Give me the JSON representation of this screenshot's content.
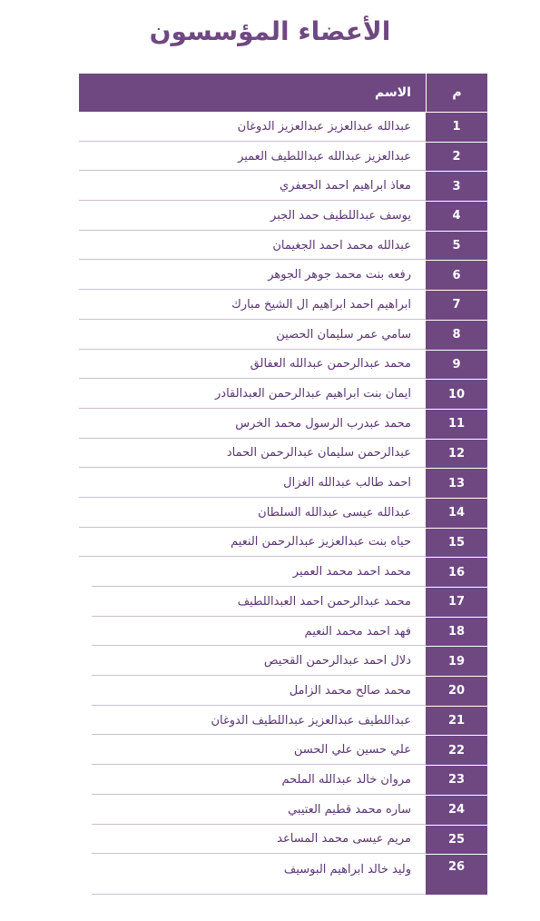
{
  "title": "الأعضاء المؤسسون",
  "table": {
    "header": {
      "num": "م",
      "name": "الاسم"
    },
    "rows": [
      {
        "num": "1",
        "name": "عبدالله عبدالعزيز عبدالعزيز الدوغان"
      },
      {
        "num": "2",
        "name": "عبدالعزيز عبدالله عبداللطيف العمير"
      },
      {
        "num": "3",
        "name": "معاذ ابراهيم احمد الجعفري"
      },
      {
        "num": "4",
        "name": "يوسف عبداللطيف حمد الجبر"
      },
      {
        "num": "5",
        "name": "عبدالله محمد احمد الجغيمان"
      },
      {
        "num": "6",
        "name": "رفعه بنت محمد جوهر الجوهر"
      },
      {
        "num": "7",
        "name": "ابراهيم احمد ابراهيم ال الشيخ مبارك"
      },
      {
        "num": "8",
        "name": "سامي عمر سليمان الحصين"
      },
      {
        "num": "9",
        "name": "محمد عبدالرحمن عبدالله العفالق"
      },
      {
        "num": "10",
        "name": "ايمان بنت ابراهيم عبدالرحمن العبدالقادر"
      },
      {
        "num": "11",
        "name": "محمد عبدرب الرسول محمد الخرس"
      },
      {
        "num": "12",
        "name": "عبدالرحمن سليمان عبدالرحمن الحماد"
      },
      {
        "num": "13",
        "name": "احمد طالب عبدالله الغزال"
      },
      {
        "num": "14",
        "name": "عبدالله عيسى عبدالله السلطان"
      },
      {
        "num": "15",
        "name": "حياه بنت عبدالعزيز عبدالرحمن النعيم"
      },
      {
        "num": "16",
        "name": "محمد احمد محمد العمير"
      },
      {
        "num": "17",
        "name": "محمد عبدالرحمن احمد العبداللطيف"
      },
      {
        "num": "18",
        "name": "فهد احمد محمد النعيم"
      },
      {
        "num": "19",
        "name": "دلال احمد عبدالرحمن القحيص"
      },
      {
        "num": "20",
        "name": "محمد صالح محمد الزامل"
      },
      {
        "num": "21",
        "name": "عبداللطيف عبدالعزيز عبداللطيف الدوغان"
      },
      {
        "num": "22",
        "name": "علي حسين علي الحسن"
      },
      {
        "num": "23",
        "name": "مروان خالد عبدالله الملحم"
      },
      {
        "num": "24",
        "name": "ساره محمد قطيم العتيبي"
      },
      {
        "num": "25",
        "name": "مريم عيسى محمد المساعد"
      },
      {
        "num": "26",
        "name": "وليد خالد ابراهيم البوسيف"
      }
    ]
  },
  "colors": {
    "accent": "#6f4882",
    "text": "#5a3570",
    "rule": "#c9bfd0"
  }
}
